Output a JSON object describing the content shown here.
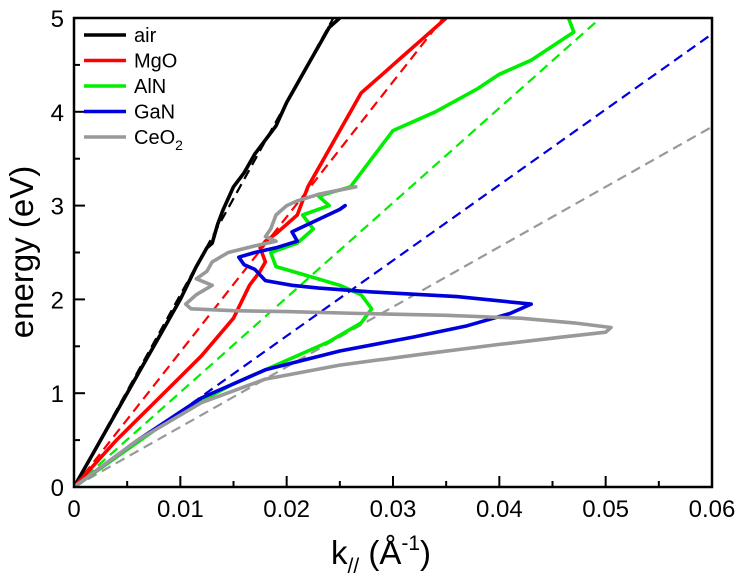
{
  "chart_data": {
    "type": "line",
    "xlabel": "k",
    "xlabel_sub": "//",
    "xlabel_unit_open": " (Å",
    "xlabel_unit_sup": "-1",
    "xlabel_unit_close": ")",
    "ylabel": "energy (eV)",
    "xlim": [
      0,
      0.06
    ],
    "ylim": [
      0,
      5
    ],
    "xticks": [
      "0",
      "0.01",
      "0.02",
      "0.03",
      "0.04",
      "0.05",
      "0.06"
    ],
    "yticks": [
      "0",
      "1",
      "2",
      "3",
      "4",
      "5"
    ],
    "grid": false,
    "legend_position": "top-left",
    "series": [
      {
        "name": "air",
        "name_sub": "",
        "color": "#000000",
        "points": [
          [
            0,
            0
          ],
          [
            0.002,
            0.4
          ],
          [
            0.004,
            0.8
          ],
          [
            0.006,
            1.2
          ],
          [
            0.008,
            1.6
          ],
          [
            0.01,
            2.0
          ],
          [
            0.0115,
            2.35
          ],
          [
            0.0125,
            2.55
          ],
          [
            0.013,
            2.6
          ],
          [
            0.0135,
            2.8
          ],
          [
            0.014,
            2.95
          ],
          [
            0.015,
            3.2
          ],
          [
            0.016,
            3.35
          ],
          [
            0.017,
            3.55
          ],
          [
            0.018,
            3.7
          ],
          [
            0.019,
            3.85
          ],
          [
            0.02,
            4.1
          ],
          [
            0.021,
            4.3
          ],
          [
            0.022,
            4.5
          ],
          [
            0.023,
            4.7
          ],
          [
            0.024,
            4.9
          ],
          [
            0.025,
            5.0
          ]
        ]
      },
      {
        "name": "MgO",
        "name_sub": "",
        "color": "#ff0000",
        "points": [
          [
            0,
            0
          ],
          [
            0.004,
            0.5
          ],
          [
            0.008,
            0.95
          ],
          [
            0.012,
            1.4
          ],
          [
            0.015,
            1.8
          ],
          [
            0.0165,
            2.15
          ],
          [
            0.0175,
            2.3
          ],
          [
            0.018,
            2.4
          ],
          [
            0.0175,
            2.55
          ],
          [
            0.018,
            2.62
          ],
          [
            0.019,
            2.7
          ],
          [
            0.021,
            2.9
          ],
          [
            0.022,
            3.2
          ],
          [
            0.0235,
            3.5
          ],
          [
            0.025,
            3.8
          ],
          [
            0.026,
            4.0
          ],
          [
            0.027,
            4.2
          ],
          [
            0.029,
            4.4
          ],
          [
            0.031,
            4.6
          ],
          [
            0.033,
            4.8
          ],
          [
            0.035,
            5.0
          ]
        ]
      },
      {
        "name": "AlN",
        "name_sub": "",
        "color": "#00ee00",
        "points": [
          [
            0,
            0
          ],
          [
            0.005,
            0.4
          ],
          [
            0.01,
            0.8
          ],
          [
            0.015,
            1.1
          ],
          [
            0.02,
            1.35
          ],
          [
            0.024,
            1.55
          ],
          [
            0.027,
            1.75
          ],
          [
            0.028,
            1.9
          ],
          [
            0.027,
            2.05
          ],
          [
            0.025,
            2.15
          ],
          [
            0.022,
            2.25
          ],
          [
            0.019,
            2.35
          ],
          [
            0.0185,
            2.5
          ],
          [
            0.021,
            2.6
          ],
          [
            0.0225,
            2.75
          ],
          [
            0.0215,
            2.9
          ],
          [
            0.024,
            3.0
          ],
          [
            0.023,
            3.1
          ],
          [
            0.026,
            3.2
          ],
          [
            0.028,
            3.5
          ],
          [
            0.03,
            3.8
          ],
          [
            0.034,
            4.0
          ],
          [
            0.038,
            4.25
          ],
          [
            0.04,
            4.4
          ],
          [
            0.043,
            4.55
          ],
          [
            0.045,
            4.7
          ],
          [
            0.047,
            4.85
          ],
          [
            0.0465,
            5.0
          ]
        ]
      },
      {
        "name": "GaN",
        "name_sub": "",
        "color": "#0000dd",
        "points": [
          [
            0,
            0
          ],
          [
            0.006,
            0.5
          ],
          [
            0.012,
            0.95
          ],
          [
            0.018,
            1.25
          ],
          [
            0.025,
            1.45
          ],
          [
            0.032,
            1.6
          ],
          [
            0.037,
            1.72
          ],
          [
            0.041,
            1.85
          ],
          [
            0.043,
            1.95
          ],
          [
            0.036,
            2.03
          ],
          [
            0.028,
            2.08
          ],
          [
            0.023,
            2.12
          ],
          [
            0.0205,
            2.15
          ],
          [
            0.018,
            2.2
          ],
          [
            0.017,
            2.32
          ],
          [
            0.016,
            2.37
          ],
          [
            0.0155,
            2.45
          ],
          [
            0.017,
            2.5
          ],
          [
            0.019,
            2.55
          ],
          [
            0.021,
            2.62
          ],
          [
            0.0205,
            2.72
          ],
          [
            0.022,
            2.8
          ],
          [
            0.0235,
            2.88
          ],
          [
            0.025,
            2.96
          ],
          [
            0.0255,
            3.0
          ]
        ]
      },
      {
        "name": "CeO",
        "name_sub": "2",
        "color": "#999999",
        "points": [
          [
            0,
            0
          ],
          [
            0.006,
            0.5
          ],
          [
            0.012,
            0.9
          ],
          [
            0.018,
            1.15
          ],
          [
            0.025,
            1.3
          ],
          [
            0.033,
            1.42
          ],
          [
            0.04,
            1.52
          ],
          [
            0.046,
            1.6
          ],
          [
            0.05,
            1.65
          ],
          [
            0.0505,
            1.7
          ],
          [
            0.047,
            1.75
          ],
          [
            0.042,
            1.8
          ],
          [
            0.035,
            1.83
          ],
          [
            0.027,
            1.85
          ],
          [
            0.02,
            1.87
          ],
          [
            0.015,
            1.88
          ],
          [
            0.011,
            1.9
          ],
          [
            0.0105,
            1.95
          ],
          [
            0.0115,
            2.05
          ],
          [
            0.013,
            2.15
          ],
          [
            0.0115,
            2.22
          ],
          [
            0.0125,
            2.3
          ],
          [
            0.013,
            2.4
          ],
          [
            0.0145,
            2.5
          ],
          [
            0.017,
            2.57
          ],
          [
            0.019,
            2.62
          ],
          [
            0.018,
            2.67
          ],
          [
            0.0185,
            2.75
          ],
          [
            0.019,
            2.9
          ],
          [
            0.02,
            3.0
          ],
          [
            0.021,
            3.05
          ],
          [
            0.023,
            3.12
          ],
          [
            0.0265,
            3.2
          ]
        ]
      }
    ],
    "asymptotes": [
      {
        "color": "#000000",
        "slope": 205
      },
      {
        "color": "#ff0000",
        "slope": 144
      },
      {
        "color": "#00ee00",
        "slope": 101
      },
      {
        "color": "#0000dd",
        "slope": 80.5
      },
      {
        "color": "#999999",
        "slope": 64.0
      }
    ]
  }
}
